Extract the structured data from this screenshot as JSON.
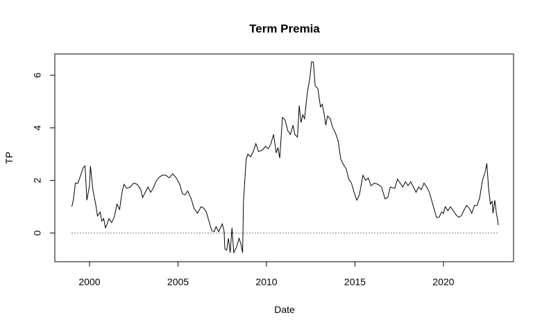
{
  "chart_data": {
    "type": "line",
    "title": "Term Premia",
    "x_label": "Date",
    "y_label": "TP",
    "xlim": [
      1998.04,
      2023.96
    ],
    "ylim": [
      -1.09,
      6.81
    ],
    "xticks": [
      2000,
      2005,
      2010,
      2015,
      2020
    ],
    "yticks": [
      0,
      2,
      4,
      6
    ],
    "zero_line": 0,
    "color": "#000000",
    "x": [
      1999.0,
      1999.1,
      1999.2,
      1999.35,
      1999.5,
      1999.65,
      1999.75,
      1999.85,
      2000.0,
      2000.05,
      2000.2,
      2000.35,
      2000.45,
      2000.6,
      2000.7,
      2000.8,
      2000.9,
      2001.0,
      2001.1,
      2001.25,
      2001.4,
      2001.55,
      2001.7,
      2001.85,
      2001.95,
      2002.1,
      2002.3,
      2002.5,
      2002.7,
      2002.9,
      2003.0,
      2003.15,
      2003.3,
      2003.45,
      2003.6,
      2003.75,
      2003.9,
      2004.1,
      2004.3,
      2004.5,
      2004.7,
      2004.9,
      2005.1,
      2005.25,
      2005.4,
      2005.55,
      2005.75,
      2005.9,
      2006.1,
      2006.3,
      2006.45,
      2006.6,
      2006.75,
      2006.9,
      2007.05,
      2007.15,
      2007.3,
      2007.4,
      2007.5,
      2007.6,
      2007.65,
      2007.75,
      2007.85,
      2007.95,
      2008.05,
      2008.15,
      2008.3,
      2008.45,
      2008.55,
      2008.65,
      2008.7,
      2008.85,
      2008.95,
      2009.1,
      2009.25,
      2009.4,
      2009.55,
      2009.75,
      2009.95,
      2010.1,
      2010.25,
      2010.4,
      2010.55,
      2010.65,
      2010.75,
      2010.9,
      2011.05,
      2011.2,
      2011.35,
      2011.5,
      2011.6,
      2011.75,
      2011.85,
      2011.95,
      2012.05,
      2012.15,
      2012.3,
      2012.45,
      2012.55,
      2012.65,
      2012.75,
      2012.9,
      2013.05,
      2013.15,
      2013.25,
      2013.35,
      2013.45,
      2013.6,
      2013.75,
      2013.9,
      2014.05,
      2014.2,
      2014.35,
      2014.5,
      2014.65,
      2014.8,
      2014.95,
      2015.1,
      2015.25,
      2015.45,
      2015.6,
      2015.75,
      2015.9,
      2016.1,
      2016.3,
      2016.5,
      2016.7,
      2016.85,
      2017.0,
      2017.25,
      2017.4,
      2017.55,
      2017.7,
      2017.85,
      2018.0,
      2018.15,
      2018.3,
      2018.45,
      2018.6,
      2018.75,
      2018.9,
      2019.05,
      2019.2,
      2019.35,
      2019.5,
      2019.6,
      2019.75,
      2019.9,
      2020.0,
      2020.1,
      2020.25,
      2020.4,
      2020.55,
      2020.7,
      2020.85,
      2021.0,
      2021.15,
      2021.3,
      2021.45,
      2021.6,
      2021.75,
      2021.9,
      2022.05,
      2022.2,
      2022.35,
      2022.45,
      2022.55,
      2022.65,
      2022.75,
      2022.8,
      2022.9,
      2023.0,
      2023.05,
      2023.1
    ],
    "values": [
      1.0,
      1.3,
      1.9,
      1.9,
      2.2,
      2.5,
      2.55,
      1.25,
      1.8,
      2.55,
      1.6,
      1.1,
      0.65,
      0.8,
      0.45,
      0.55,
      0.2,
      0.35,
      0.55,
      0.4,
      0.6,
      1.1,
      0.9,
      1.6,
      1.85,
      1.7,
      1.75,
      1.9,
      1.85,
      1.65,
      1.35,
      1.55,
      1.75,
      1.55,
      1.7,
      1.95,
      2.1,
      2.2,
      2.2,
      2.1,
      2.25,
      2.1,
      1.85,
      1.5,
      1.45,
      1.6,
      1.3,
      0.95,
      0.75,
      1.0,
      0.95,
      0.8,
      0.45,
      0.1,
      0.05,
      0.25,
      0.05,
      0.2,
      0.35,
      0.1,
      -0.6,
      -0.65,
      -0.2,
      -0.75,
      0.2,
      -0.75,
      -0.55,
      -0.2,
      -0.4,
      -0.75,
      1.2,
      2.8,
      3.0,
      2.9,
      3.1,
      3.4,
      3.1,
      3.15,
      3.3,
      3.2,
      3.4,
      3.75,
      3.05,
      3.25,
      2.85,
      4.4,
      4.3,
      3.9,
      3.75,
      4.1,
      3.75,
      3.65,
      4.85,
      4.2,
      4.5,
      4.35,
      5.3,
      5.9,
      6.52,
      6.5,
      5.6,
      5.5,
      4.8,
      4.9,
      4.55,
      4.1,
      4.45,
      4.35,
      4.0,
      3.8,
      3.5,
      2.8,
      2.6,
      2.45,
      2.05,
      1.9,
      1.55,
      1.25,
      1.45,
      2.2,
      2.0,
      2.1,
      1.8,
      1.9,
      1.85,
      1.75,
      1.3,
      1.35,
      1.75,
      1.7,
      2.05,
      1.9,
      1.75,
      1.95,
      1.8,
      1.95,
      1.75,
      1.55,
      1.75,
      1.65,
      1.9,
      1.75,
      1.55,
      1.2,
      0.85,
      0.6,
      0.6,
      0.8,
      0.75,
      1.0,
      0.85,
      1.0,
      0.85,
      0.7,
      0.6,
      0.65,
      0.85,
      1.05,
      0.95,
      0.75,
      1.05,
      1.05,
      1.35,
      2.0,
      2.3,
      2.65,
      1.7,
      1.1,
      1.2,
      0.75,
      1.25,
      0.7,
      0.55,
      0.3
    ]
  }
}
